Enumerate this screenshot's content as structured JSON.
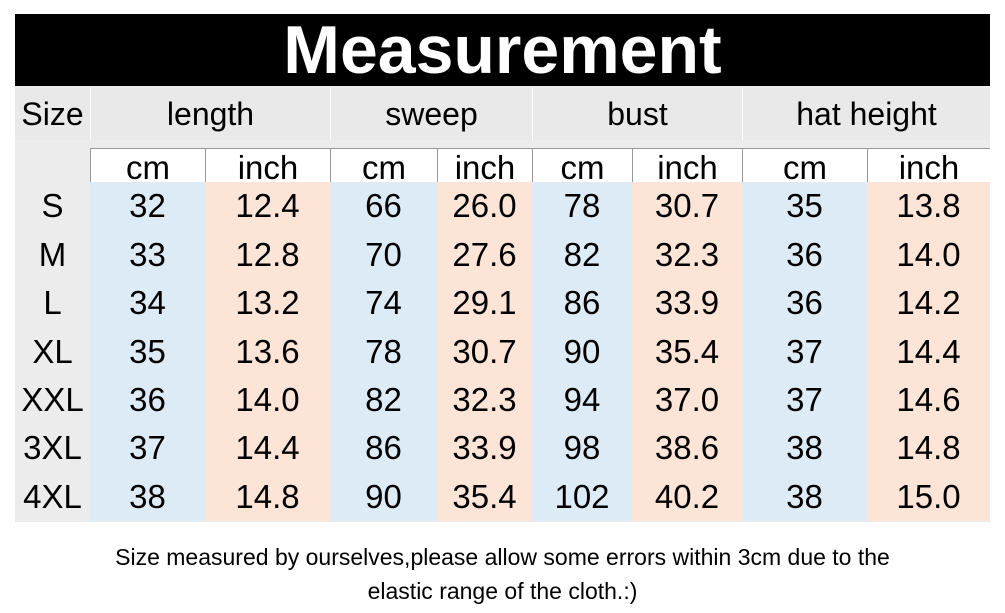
{
  "title": "Measurement",
  "table": {
    "size_label": "Size",
    "groups": [
      {
        "name": "length",
        "units": [
          "cm",
          "inch"
        ]
      },
      {
        "name": "sweep",
        "units": [
          "cm",
          "inch"
        ]
      },
      {
        "name": "bust",
        "units": [
          "cm",
          "inch"
        ]
      },
      {
        "name": "hat height",
        "units": [
          "cm",
          "inch"
        ]
      }
    ],
    "rows": [
      [
        "S",
        "32",
        "12.4",
        "66",
        "26.0",
        "78",
        "30.7",
        "35",
        "13.8"
      ],
      [
        "M",
        "33",
        "12.8",
        "70",
        "27.6",
        "82",
        "32.3",
        "36",
        "14.0"
      ],
      [
        "L",
        "34",
        "13.2",
        "74",
        "29.1",
        "86",
        "33.9",
        "36",
        "14.2"
      ],
      [
        "XL",
        "35",
        "13.6",
        "78",
        "30.7",
        "90",
        "35.4",
        "37",
        "14.4"
      ],
      [
        "XXL",
        "36",
        "14.0",
        "82",
        "32.3",
        "94",
        "37.0",
        "37",
        "14.6"
      ],
      [
        "3XL",
        "37",
        "14.4",
        "86",
        "33.9",
        "98",
        "38.6",
        "38",
        "14.8"
      ],
      [
        "4XL",
        "38",
        "14.8",
        "90",
        "35.4",
        "102",
        "40.2",
        "38",
        "15.0"
      ]
    ]
  },
  "footer": [
    "Size measured by ourselves,please allow some errors within 3cm due to the",
    "elastic range of the cloth.:)"
  ]
}
